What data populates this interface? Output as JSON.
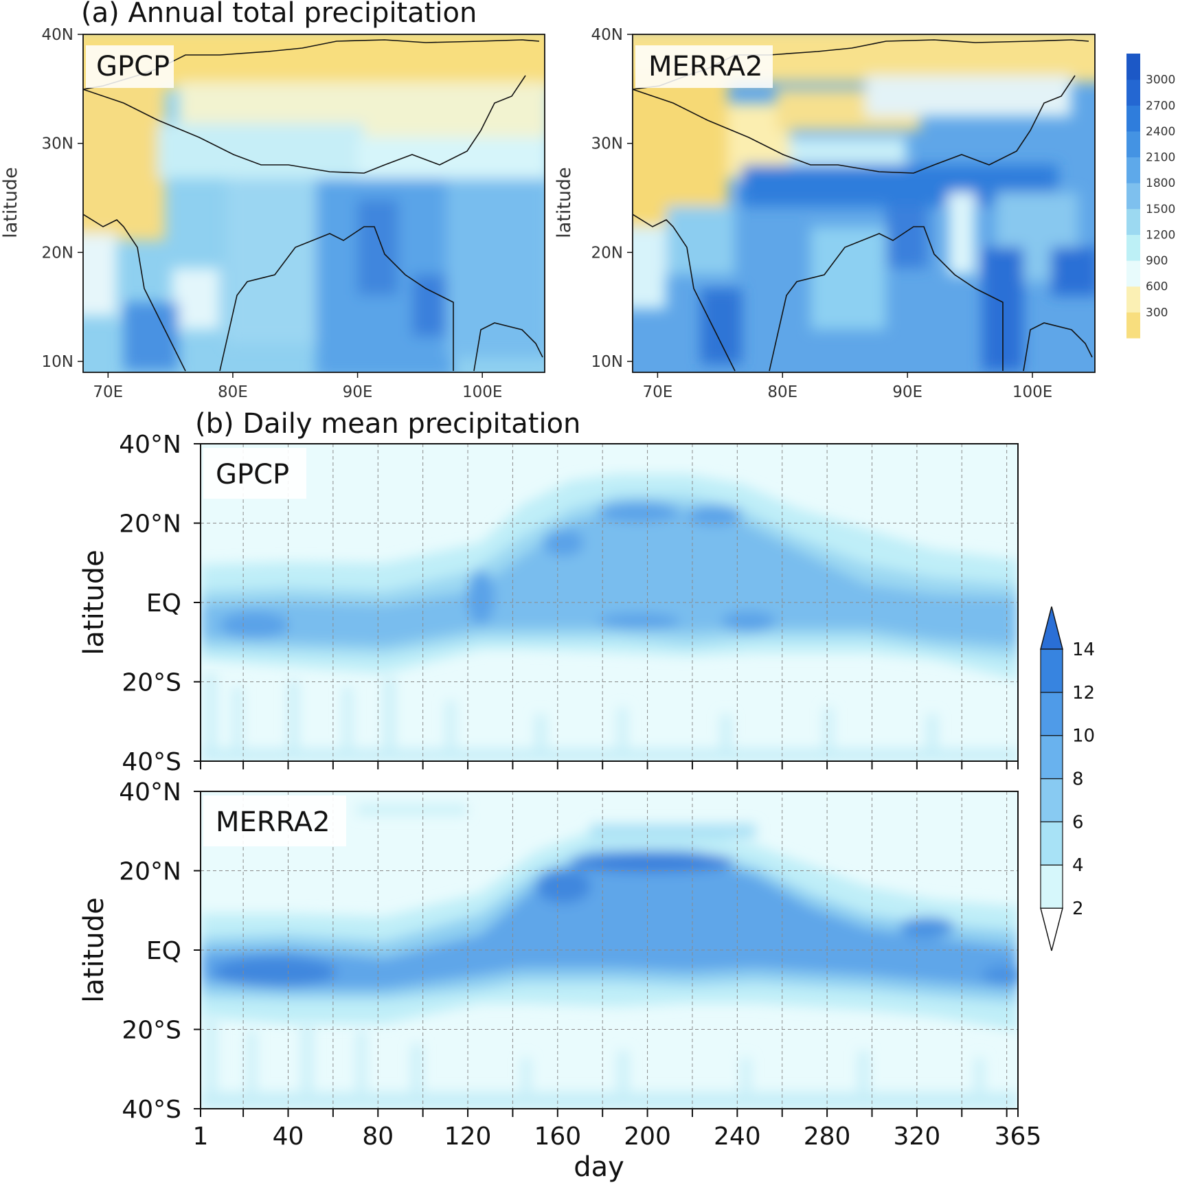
{
  "chart_data": [
    {
      "type": "heatmap",
      "panel": "a",
      "title": "(a) Annual total precipitation",
      "maps": [
        {
          "label": "GPCP",
          "ylabel": "latitude"
        },
        {
          "label": "MERRA2",
          "ylabel": "latitude"
        }
      ],
      "xticks": [
        "70E",
        "80E",
        "90E",
        "100E"
      ],
      "xtick_values": [
        70,
        80,
        90,
        100
      ],
      "yticks": [
        "40N",
        "30N",
        "20N",
        "10N"
      ],
      "ytick_values": [
        40,
        30,
        20,
        10
      ],
      "xlim": [
        68,
        105
      ],
      "ylim": [
        9,
        40
      ],
      "colorbar": {
        "levels": [
          "300",
          "600",
          "900",
          "1200",
          "1500",
          "1800",
          "2100",
          "2400",
          "2700",
          "3000"
        ],
        "colors": [
          "#f8de7e",
          "#fbf0b4",
          "#e8fbfc",
          "#bdf0f6",
          "#9cd9f1",
          "#7ec0ee",
          "#5ea9ea",
          "#4493e3",
          "#2f7ddc",
          "#2467d2",
          "#1c58c6"
        ]
      }
    },
    {
      "type": "heatmap",
      "panel": "b",
      "title": "(b) Daily mean precipitation",
      "maps": [
        {
          "label": "GPCP",
          "ylabel": "latitude"
        },
        {
          "label": "MERRA2",
          "ylabel": "latitude"
        }
      ],
      "xlabel": "day",
      "xticks": [
        "1",
        "40",
        "80",
        "120",
        "160",
        "200",
        "240",
        "280",
        "320",
        "365"
      ],
      "xtick_values": [
        1,
        40,
        80,
        120,
        160,
        200,
        240,
        280,
        320,
        365
      ],
      "xlim": [
        1,
        365
      ],
      "yticks": [
        "40°N",
        "20°N",
        "EQ",
        "20°S",
        "40°S"
      ],
      "ytick_values": [
        40,
        20,
        0,
        -20,
        -40
      ],
      "ylim": [
        -40,
        40
      ],
      "colorbar": {
        "levels": [
          "2",
          "4",
          "6",
          "8",
          "10",
          "12",
          "14"
        ],
        "colors": [
          "#ffffff",
          "#d6f7fb",
          "#a8e2f6",
          "#88caf2",
          "#69b2ee",
          "#4f9be8",
          "#3784e0",
          "#2a6fd6"
        ]
      }
    }
  ]
}
